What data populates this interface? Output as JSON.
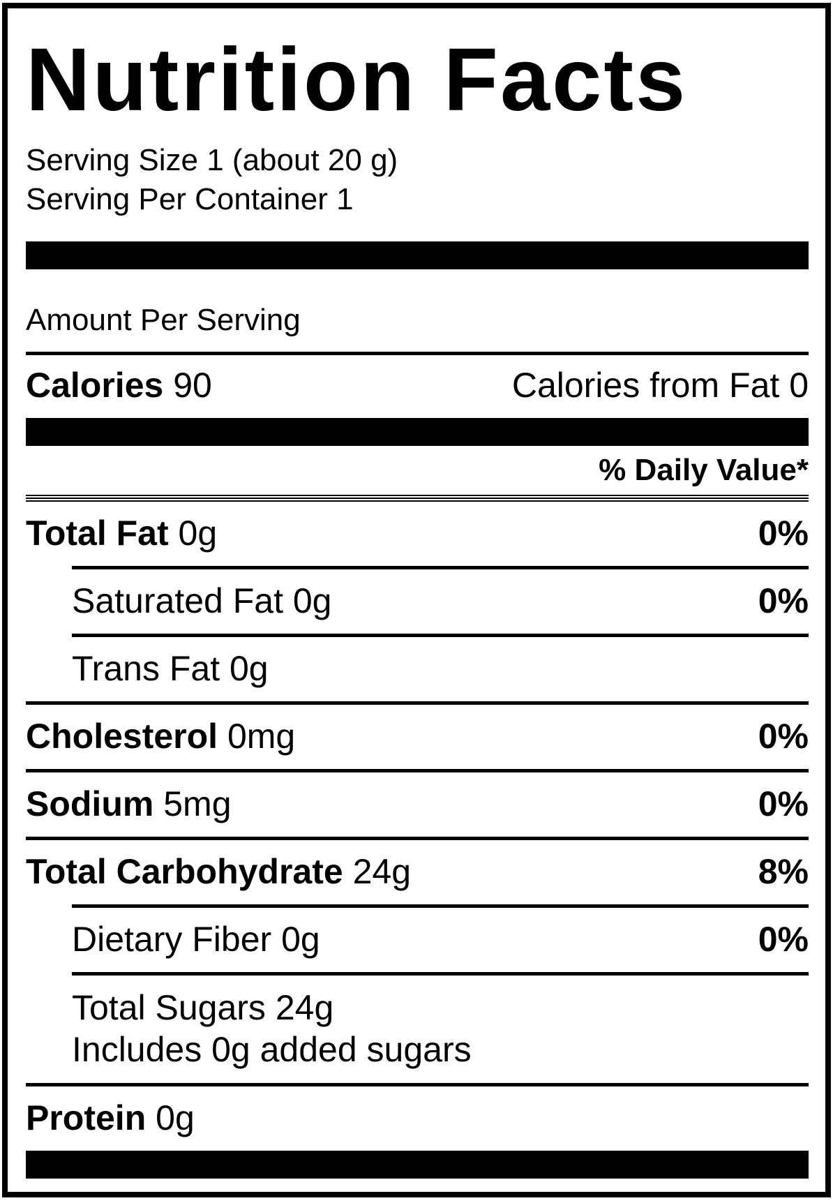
{
  "colors": {
    "text": "#000000",
    "background": "#ffffff"
  },
  "label": {
    "title": "Nutrition Facts",
    "serving_size": "Serving Size 1 (about 20 g)",
    "servings_per_container": "Serving Per Container 1",
    "amount_per_serving": "Amount Per Serving",
    "calories": {
      "label": "Calories",
      "value": "90"
    },
    "calories_from_fat": {
      "label": "Calories from Fat",
      "value": "0"
    },
    "daily_value_header": "% Daily Value*",
    "rows": [
      {
        "name": "Total Fat",
        "amount": "0g",
        "dv": "0%"
      },
      {
        "name": "Saturated Fat",
        "amount": "0g",
        "dv": "0%"
      },
      {
        "name": "Trans Fat",
        "amount": "0g",
        "dv": ""
      },
      {
        "name": "Cholesterol",
        "amount": "0mg",
        "dv": "0%"
      },
      {
        "name": "Sodium",
        "amount": "5mg",
        "dv": "0%"
      },
      {
        "name": "Total Carbohydrate",
        "amount": "24g",
        "dv": "8%"
      },
      {
        "name": "Dietary Fiber",
        "amount": "0g",
        "dv": "0%"
      },
      {
        "name": "Total Sugars",
        "amount": "24g",
        "dv": "",
        "extra_line": "Includes 0g added sugars"
      },
      {
        "name": "Protein",
        "amount": "0g",
        "dv": ""
      }
    ]
  }
}
